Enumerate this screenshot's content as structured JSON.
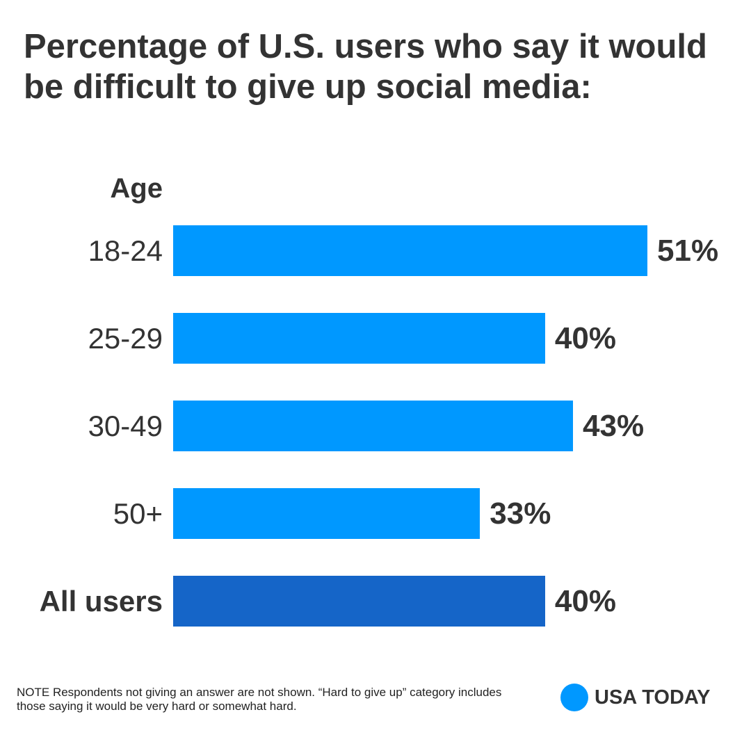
{
  "chart_data": {
    "type": "bar",
    "orientation": "horizontal",
    "title": "Percentage of U.S. users who say it would be difficult to give up social media:",
    "axis_title": "Age",
    "categories": [
      "18-24",
      "25-29",
      "30-49",
      "50+",
      "All users"
    ],
    "values": [
      51,
      40,
      43,
      33,
      40
    ],
    "value_labels": [
      "51%",
      "40%",
      "43%",
      "33%",
      "40%"
    ],
    "unit": "%",
    "xlim": [
      0,
      51
    ],
    "grid": false,
    "colors": [
      "#0098FF",
      "#0098FF",
      "#0098FF",
      "#0098FF",
      "#1565C8"
    ]
  },
  "note": "NOTE Respondents not giving an answer are not shown. “Hard to give up” category includes those saying it would be very hard or somewhat hard.",
  "logo": "USA TODAY"
}
